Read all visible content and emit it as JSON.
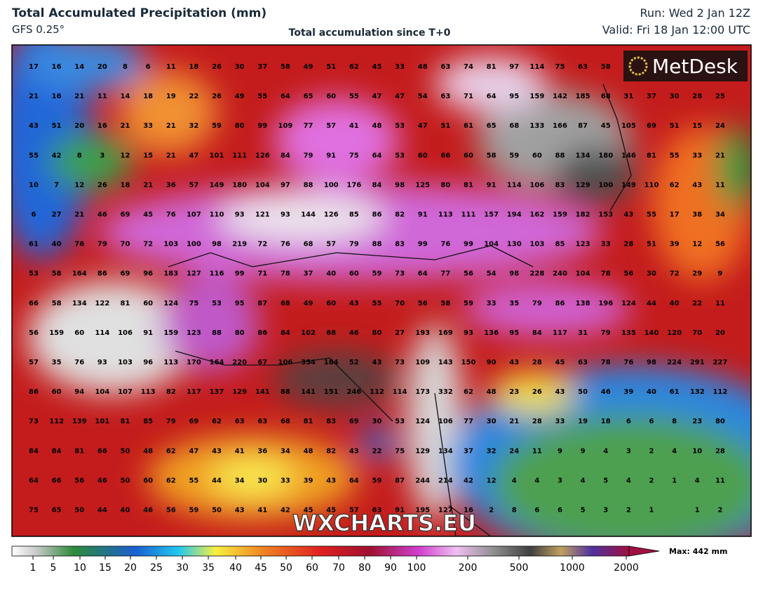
{
  "header": {
    "title": "Total Accumulated Precipitation (mm)",
    "model": "GFS 0.25°",
    "subtitle": "Total accumulation since T+0",
    "run": "Run: Wed 2 Jan 12Z",
    "valid": "Valid: Fri 18 Jan 12:00 UTC"
  },
  "logo": "MetDesk",
  "watermark": "WXCHARTS.EU",
  "grid": [
    [
      17,
      16,
      14,
      20,
      8,
      6,
      11,
      18,
      26,
      30,
      37,
      58,
      49,
      51,
      62,
      45,
      33,
      48,
      63,
      74,
      81,
      97,
      114,
      75,
      63,
      58,
      null,
      null,
      null,
      null,
      null
    ],
    [
      21,
      16,
      21,
      11,
      14,
      18,
      19,
      22,
      26,
      49,
      55,
      64,
      65,
      60,
      55,
      47,
      47,
      54,
      63,
      71,
      64,
      95,
      159,
      142,
      185,
      68,
      31,
      37,
      30,
      28,
      25
    ],
    [
      43,
      51,
      20,
      16,
      21,
      33,
      21,
      32,
      59,
      80,
      99,
      109,
      77,
      57,
      41,
      48,
      53,
      47,
      51,
      61,
      65,
      68,
      133,
      166,
      87,
      45,
      105,
      69,
      51,
      15,
      24
    ],
    [
      55,
      42,
      8,
      3,
      12,
      15,
      21,
      47,
      101,
      111,
      126,
      84,
      79,
      91,
      75,
      64,
      53,
      60,
      66,
      60,
      58,
      59,
      60,
      88,
      134,
      180,
      146,
      81,
      55,
      33,
      21
    ],
    [
      10,
      7,
      12,
      26,
      18,
      21,
      36,
      57,
      149,
      180,
      104,
      97,
      88,
      100,
      176,
      84,
      98,
      125,
      80,
      81,
      91,
      114,
      106,
      83,
      129,
      100,
      149,
      110,
      62,
      43,
      11
    ],
    [
      6,
      27,
      21,
      46,
      69,
      45,
      76,
      107,
      110,
      93,
      121,
      93,
      144,
      126,
      85,
      86,
      82,
      91,
      113,
      111,
      157,
      194,
      162,
      159,
      182,
      153,
      43,
      55,
      17,
      38,
      34
    ],
    [
      61,
      40,
      76,
      79,
      70,
      72,
      103,
      100,
      98,
      219,
      72,
      76,
      68,
      57,
      79,
      88,
      83,
      99,
      76,
      99,
      104,
      130,
      103,
      85,
      123,
      33,
      28,
      51,
      39,
      12,
      56
    ],
    [
      53,
      58,
      164,
      86,
      69,
      96,
      183,
      127,
      116,
      99,
      71,
      78,
      37,
      40,
      60,
      59,
      73,
      64,
      77,
      56,
      54,
      98,
      228,
      240,
      104,
      78,
      56,
      30,
      72,
      29,
      9
    ],
    [
      66,
      58,
      134,
      122,
      81,
      60,
      124,
      75,
      53,
      95,
      87,
      68,
      49,
      60,
      43,
      55,
      70,
      56,
      58,
      59,
      33,
      35,
      79,
      86,
      138,
      196,
      124,
      44,
      40,
      22,
      11
    ],
    [
      56,
      159,
      60,
      114,
      106,
      91,
      159,
      123,
      88,
      80,
      86,
      84,
      102,
      68,
      46,
      80,
      27,
      193,
      169,
      93,
      136,
      95,
      84,
      117,
      31,
      79,
      135,
      140,
      120,
      70,
      20
    ],
    [
      57,
      35,
      76,
      93,
      103,
      96,
      113,
      170,
      164,
      220,
      67,
      106,
      354,
      184,
      52,
      43,
      73,
      109,
      143,
      150,
      90,
      43,
      28,
      45,
      63,
      78,
      76,
      98,
      224,
      291,
      227
    ],
    [
      86,
      60,
      94,
      104,
      107,
      113,
      82,
      117,
      137,
      129,
      141,
      88,
      141,
      151,
      246,
      112,
      114,
      173,
      332,
      62,
      48,
      23,
      26,
      43,
      50,
      46,
      39,
      40,
      61,
      132,
      112
    ],
    [
      73,
      112,
      139,
      101,
      81,
      85,
      79,
      69,
      62,
      63,
      63,
      68,
      81,
      83,
      69,
      30,
      53,
      124,
      106,
      77,
      30,
      21,
      28,
      33,
      19,
      18,
      6,
      6,
      8,
      23,
      80
    ],
    [
      84,
      84,
      81,
      66,
      50,
      48,
      62,
      47,
      43,
      41,
      36,
      34,
      48,
      82,
      43,
      22,
      75,
      129,
      134,
      37,
      32,
      24,
      11,
      9,
      9,
      4,
      3,
      2,
      4,
      10,
      28
    ],
    [
      64,
      66,
      56,
      46,
      50,
      60,
      62,
      55,
      44,
      34,
      30,
      33,
      39,
      43,
      64,
      59,
      87,
      244,
      214,
      42,
      12,
      4,
      4,
      3,
      4,
      5,
      4,
      2,
      1,
      4,
      11
    ],
    [
      75,
      65,
      50,
      44,
      40,
      46,
      56,
      59,
      50,
      43,
      41,
      42,
      45,
      45,
      57,
      63,
      91,
      195,
      127,
      16,
      2,
      8,
      6,
      6,
      5,
      3,
      2,
      1,
      null,
      1,
      2
    ]
  ],
  "legend": {
    "labels": [
      1,
      5,
      10,
      15,
      20,
      25,
      30,
      35,
      40,
      45,
      50,
      60,
      70,
      80,
      90,
      100,
      200,
      500,
      1000,
      2000
    ],
    "max": "Max: 442 mm"
  }
}
